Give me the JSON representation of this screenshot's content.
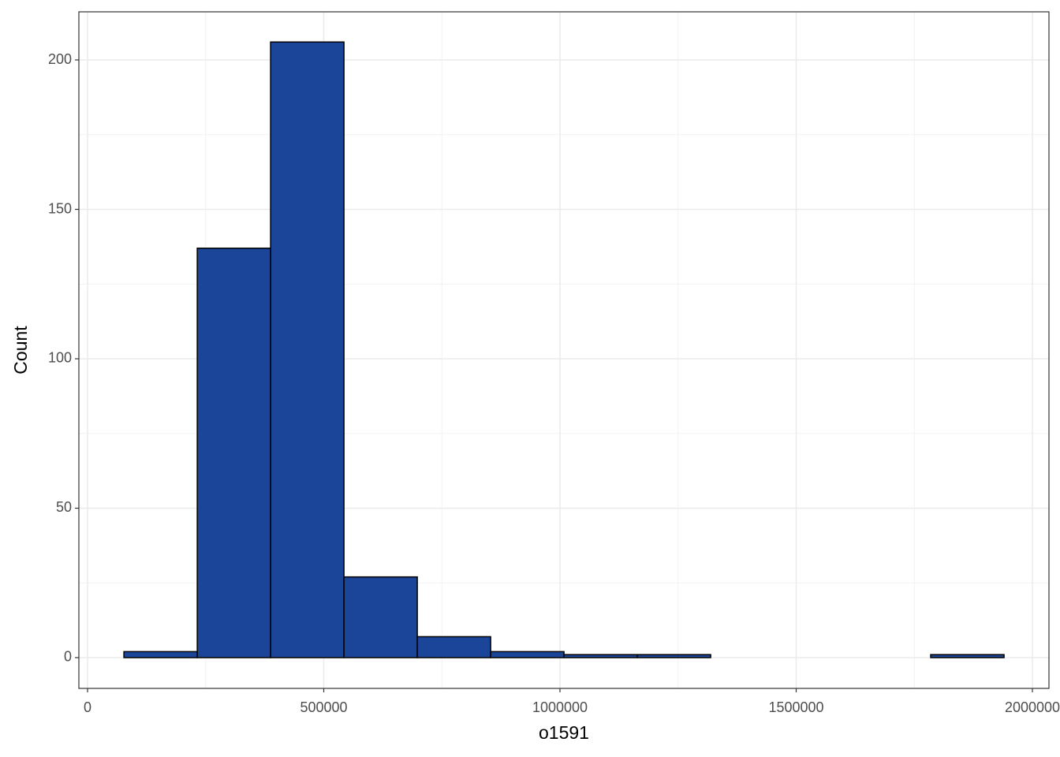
{
  "chart_data": {
    "type": "histogram",
    "x_label": "o1591",
    "y_label": "Count",
    "bins": [
      77000,
      232250,
      387500,
      542750,
      698000,
      853250,
      1008500,
      1163750,
      1319000,
      1474250,
      1629500,
      1784750,
      1940000
    ],
    "values": [
      2,
      137,
      206,
      27,
      7,
      2,
      1,
      1,
      0,
      0,
      0,
      1
    ],
    "color": "#1a4599",
    "edge_color": "#000000",
    "xlim": [
      -18364,
      2035058
    ],
    "ylim": [
      -10.3,
      216.1
    ],
    "xticks": [
      0,
      500000,
      1000000,
      1500000,
      2000000
    ],
    "yticks": [
      0,
      50,
      100,
      150,
      200
    ],
    "grid": true
  }
}
